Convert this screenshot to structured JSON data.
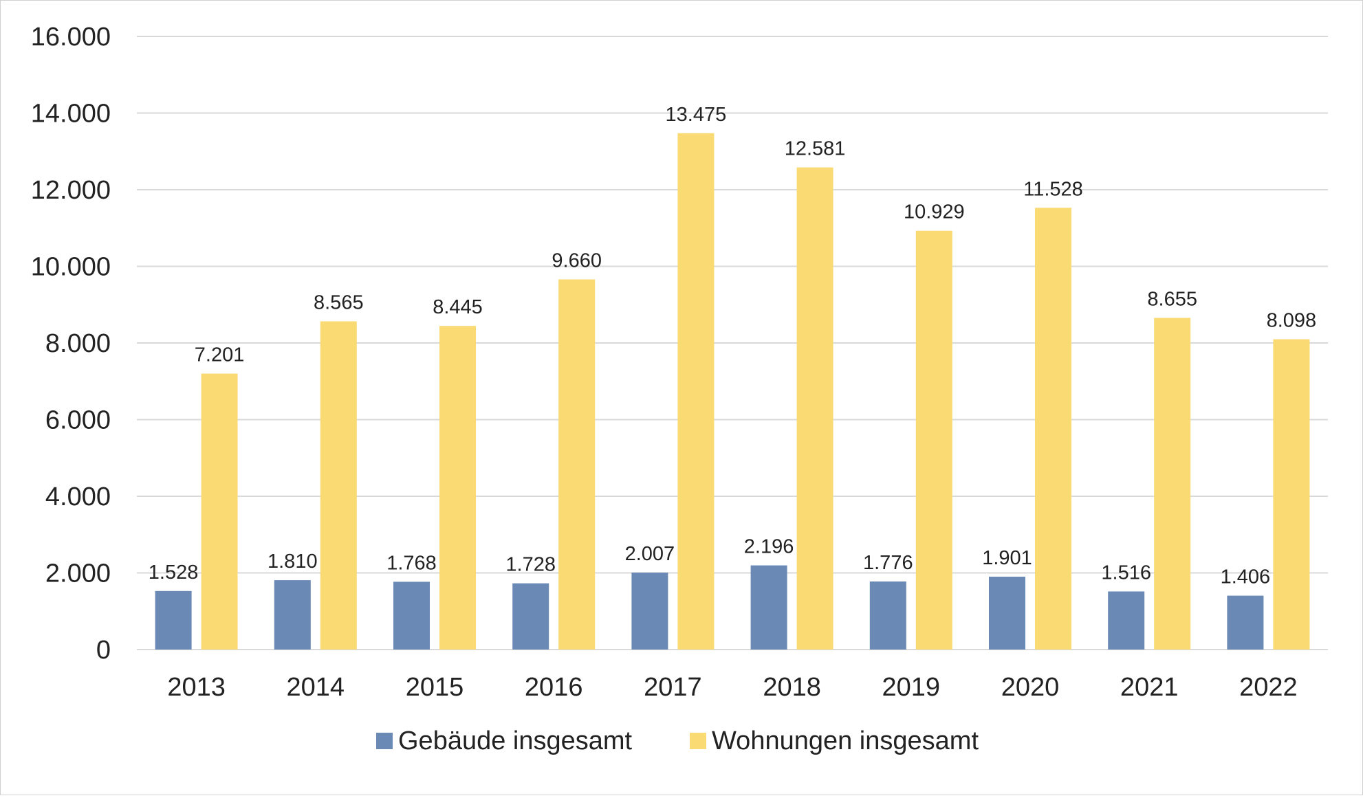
{
  "chart_data": {
    "type": "bar",
    "title": "",
    "xlabel": "",
    "ylabel": "",
    "categories": [
      "2013",
      "2014",
      "2015",
      "2016",
      "2017",
      "2018",
      "2019",
      "2020",
      "2021",
      "2022"
    ],
    "series": [
      {
        "name": "Gebäude insgesamt",
        "color": "#6a89b5",
        "values": [
          1528,
          1810,
          1768,
          1728,
          2007,
          2196,
          1776,
          1901,
          1516,
          1406
        ],
        "labels": [
          "1.528",
          "1.810",
          "1.768",
          "1.728",
          "2.007",
          "2.196",
          "1.776",
          "1.901",
          "1.516",
          "1.406"
        ]
      },
      {
        "name": "Wohnungen insgesamt",
        "color": "#f9da73",
        "values": [
          7201,
          8565,
          8445,
          9660,
          13475,
          12581,
          10929,
          11528,
          8655,
          8098
        ],
        "labels": [
          "7.201",
          "8.565",
          "8.445",
          "9.660",
          "13.475",
          "12.581",
          "10.929",
          "11.528",
          "8.655",
          "8.098"
        ]
      }
    ],
    "ylim": [
      0,
      16000
    ],
    "yticks": [
      0,
      2000,
      4000,
      6000,
      8000,
      10000,
      12000,
      14000,
      16000
    ],
    "ytick_labels": [
      "0",
      "2.000",
      "4.000",
      "6.000",
      "8.000",
      "10.000",
      "12.000",
      "14.000",
      "16.000"
    ],
    "grid": true,
    "legend_position": "bottom"
  }
}
